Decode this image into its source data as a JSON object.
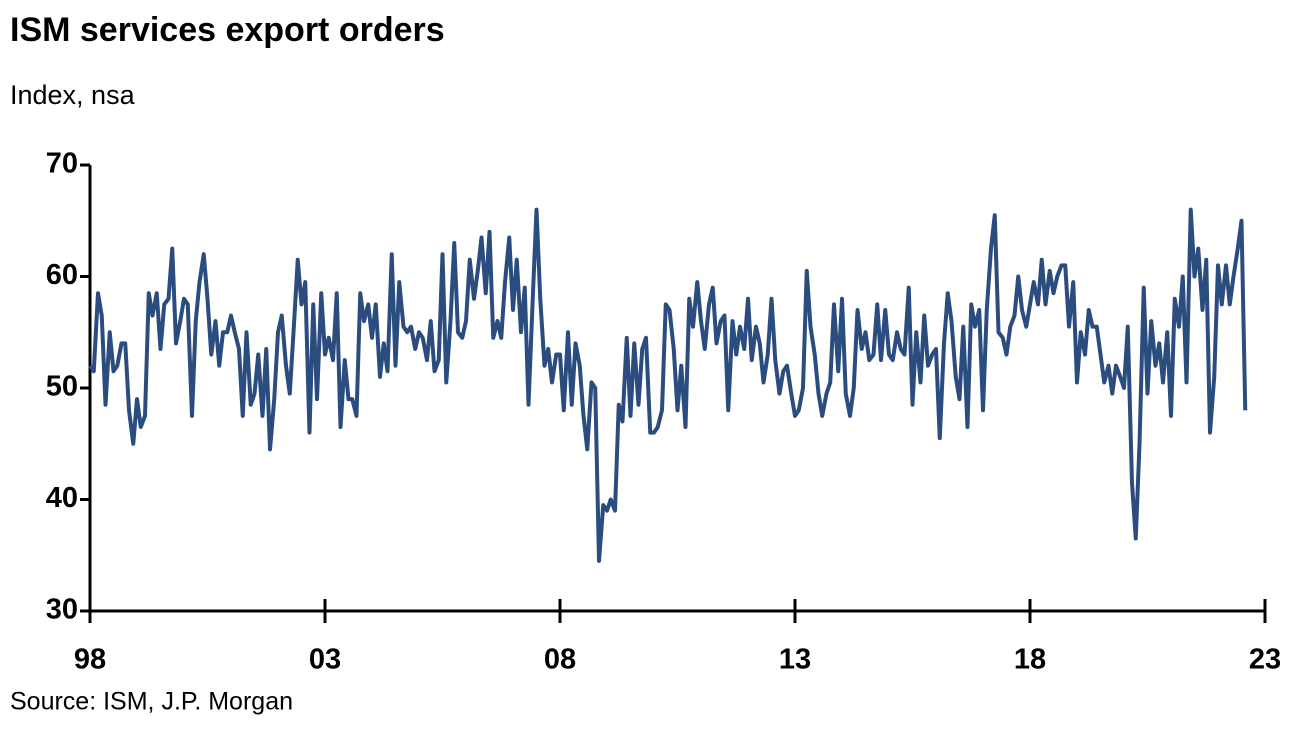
{
  "chart_data": {
    "type": "line",
    "title": "ISM services export orders",
    "subtitle": "Index, nsa",
    "source": "Source: ISM, J.P. Morgan",
    "color": "#2b4c7e",
    "xlim": [
      1998,
      2023
    ],
    "xticks": [
      {
        "value": 1998,
        "label": "98"
      },
      {
        "value": 2003,
        "label": "03"
      },
      {
        "value": 2008,
        "label": "08"
      },
      {
        "value": 2013,
        "label": "13"
      },
      {
        "value": 2018,
        "label": "18"
      },
      {
        "value": 2023,
        "label": "23"
      }
    ],
    "ylim": [
      30,
      70
    ],
    "yticks": [
      30,
      40,
      50,
      60,
      70
    ],
    "grid": false,
    "x": [
      1998,
      1998.08,
      1998.17,
      1998.25,
      1998.33,
      1998.42,
      1998.5,
      1998.58,
      1998.67,
      1998.75,
      1998.83,
      1998.92,
      1999,
      1999.08,
      1999.17,
      1999.25,
      1999.33,
      1999.42,
      1999.5,
      1999.58,
      1999.67,
      1999.75,
      1999.83,
      1999.92,
      2000,
      2000.08,
      2000.17,
      2000.25,
      2000.33,
      2000.42,
      2000.5,
      2000.58,
      2000.67,
      2000.75,
      2000.83,
      2000.92,
      2001,
      2001.08,
      2001.17,
      2001.25,
      2001.33,
      2001.42,
      2001.5,
      2001.58,
      2001.67,
      2001.75,
      2001.83,
      2001.92,
      2002,
      2002.08,
      2002.17,
      2002.25,
      2002.33,
      2002.42,
      2002.5,
      2002.58,
      2002.67,
      2002.75,
      2002.83,
      2002.92,
      2003,
      2003.08,
      2003.17,
      2003.25,
      2003.33,
      2003.42,
      2003.5,
      2003.58,
      2003.67,
      2003.75,
      2003.83,
      2003.92,
      2004,
      2004.08,
      2004.17,
      2004.25,
      2004.33,
      2004.42,
      2004.5,
      2004.58,
      2004.67,
      2004.75,
      2004.83,
      2004.92,
      2005,
      2005.08,
      2005.17,
      2005.25,
      2005.33,
      2005.42,
      2005.5,
      2005.58,
      2005.67,
      2005.75,
      2005.83,
      2005.92,
      2006,
      2006.08,
      2006.17,
      2006.25,
      2006.33,
      2006.42,
      2006.5,
      2006.58,
      2006.67,
      2006.75,
      2006.83,
      2006.92,
      2007,
      2007.08,
      2007.17,
      2007.25,
      2007.33,
      2007.42,
      2007.5,
      2007.58,
      2007.67,
      2007.75,
      2007.83,
      2007.92,
      2008,
      2008.08,
      2008.17,
      2008.25,
      2008.33,
      2008.42,
      2008.5,
      2008.58,
      2008.67,
      2008.75,
      2008.83,
      2008.92,
      2009,
      2009.08,
      2009.17,
      2009.25,
      2009.33,
      2009.42,
      2009.5,
      2009.58,
      2009.67,
      2009.75,
      2009.83,
      2009.92,
      2010,
      2010.08,
      2010.17,
      2010.25,
      2010.33,
      2010.42,
      2010.5,
      2010.58,
      2010.67,
      2010.75,
      2010.83,
      2010.92,
      2011,
      2011.08,
      2011.17,
      2011.25,
      2011.33,
      2011.42,
      2011.5,
      2011.58,
      2011.67,
      2011.75,
      2011.83,
      2011.92,
      2012,
      2012.08,
      2012.17,
      2012.25,
      2012.33,
      2012.42,
      2012.5,
      2012.58,
      2012.67,
      2012.75,
      2012.83,
      2012.92,
      2013,
      2013.08,
      2013.17,
      2013.25,
      2013.33,
      2013.42,
      2013.5,
      2013.58,
      2013.67,
      2013.75,
      2013.83,
      2013.92,
      2014,
      2014.08,
      2014.17,
      2014.25,
      2014.33,
      2014.42,
      2014.5,
      2014.58,
      2014.67,
      2014.75,
      2014.83,
      2014.92,
      2015,
      2015.08,
      2015.17,
      2015.25,
      2015.33,
      2015.42,
      2015.5,
      2015.58,
      2015.67,
      2015.75,
      2015.83,
      2015.92,
      2016,
      2016.08,
      2016.17,
      2016.25,
      2016.33,
      2016.42,
      2016.5,
      2016.58,
      2016.67,
      2016.75,
      2016.83,
      2016.92,
      2017,
      2017.08,
      2017.17,
      2017.25,
      2017.33,
      2017.42,
      2017.5,
      2017.58,
      2017.67,
      2017.75,
      2017.83,
      2017.92,
      2018,
      2018.08,
      2018.17,
      2018.25,
      2018.33,
      2018.42,
      2018.5,
      2018.58,
      2018.67,
      2018.75,
      2018.83,
      2018.92,
      2019,
      2019.08,
      2019.17,
      2019.25,
      2019.33,
      2019.42,
      2019.5,
      2019.58,
      2019.67,
      2019.75,
      2019.83,
      2019.92,
      2020,
      2020.08,
      2020.17,
      2020.25,
      2020.33,
      2020.42,
      2020.5,
      2020.58,
      2020.67,
      2020.75,
      2020.83,
      2020.92,
      2021,
      2021.08,
      2021.17,
      2021.25,
      2021.33,
      2021.42,
      2021.5,
      2021.58,
      2021.67,
      2021.75,
      2021.83,
      2021.92,
      2022,
      2022.08,
      2022.17,
      2022.25,
      2022.33,
      2022.42,
      2022.5,
      2022.58
    ],
    "values": [
      52,
      51.5,
      58.5,
      56.5,
      48.5,
      55,
      51.5,
      52,
      54,
      54,
      48,
      45,
      49,
      46.5,
      47.5,
      58.5,
      56.5,
      58.5,
      53.5,
      57.5,
      58,
      62.5,
      54,
      56,
      58,
      57.5,
      47.5,
      56,
      59.5,
      62,
      58,
      53,
      56,
      52,
      55,
      55,
      56.5,
      55,
      53.5,
      47.5,
      55,
      48.5,
      49.5,
      53,
      47.5,
      53.5,
      44.5,
      49,
      55,
      56.5,
      52,
      49.5,
      55,
      61.5,
      57.5,
      59.5,
      46,
      57.5,
      49,
      58.5,
      53,
      54.5,
      52.5,
      58.5,
      46.5,
      52.5,
      49,
      49,
      47.5,
      58.5,
      56,
      57.5,
      54.5,
      57.5,
      51,
      54,
      51.5,
      62,
      52,
      59.5,
      55.5,
      55,
      55.5,
      53.5,
      55,
      54.5,
      52.5,
      56,
      51.5,
      52.5,
      62,
      50.5,
      56,
      63,
      55,
      54.5,
      56,
      61.5,
      58,
      60.5,
      63.5,
      58.5,
      64,
      54.5,
      56,
      54.5,
      59.5,
      63.5,
      57,
      61.5,
      55,
      59,
      48.5,
      58,
      66,
      58,
      52,
      53.5,
      50.5,
      53,
      53,
      48,
      55,
      48.5,
      54,
      52,
      47.5,
      44.5,
      50.5,
      50,
      34.5,
      39.5,
      39,
      40,
      39,
      48.5,
      47,
      54.5,
      47.5,
      54,
      48.5,
      53.5,
      54.5,
      46,
      46,
      46.5,
      48,
      57.5,
      57,
      53.5,
      48,
      52,
      46.5,
      58,
      55.5,
      59.5,
      56,
      53.5,
      57.5,
      59,
      54,
      56,
      56.5,
      48,
      56,
      53,
      55.5,
      53.5,
      58,
      52.5,
      55.5,
      54,
      50.5,
      53,
      58,
      52.5,
      49.5,
      51.5,
      52,
      49.5,
      47.5,
      48,
      50,
      60.5,
      55.5,
      53,
      49.5,
      47.5,
      49.5,
      50.5,
      57.5,
      51.5,
      58,
      49.5,
      47.5,
      50,
      57,
      53.5,
      55,
      52.5,
      53,
      57.5,
      52.5,
      57,
      53,
      52.5,
      55,
      53.5,
      53,
      59,
      48.5,
      55,
      50.5,
      56.5,
      52,
      53,
      53.5,
      45.5,
      54,
      58.5,
      56,
      51,
      49,
      55.5,
      46.5,
      57.5,
      55.5,
      57,
      48,
      57,
      62.5,
      65.5,
      55,
      54.5,
      53,
      55.5,
      56.5,
      60,
      57,
      55.5,
      57.5,
      59.5,
      57.5,
      61.5,
      57.5,
      60.5,
      58.5,
      60,
      61,
      61,
      55.5,
      59.5,
      50.5,
      55,
      53,
      57,
      55.5,
      55.5,
      53,
      50.5,
      52,
      49.5,
      52,
      51,
      50,
      55.5,
      41.5,
      36.5,
      45,
      59,
      49.5,
      56,
      52,
      54,
      50.5,
      55,
      47.5,
      58,
      55.5,
      60,
      50.5,
      66,
      60,
      62.5,
      57,
      61.5,
      46,
      51,
      61,
      57.5,
      61,
      57.5,
      60,
      62.5,
      65,
      48
    ]
  }
}
